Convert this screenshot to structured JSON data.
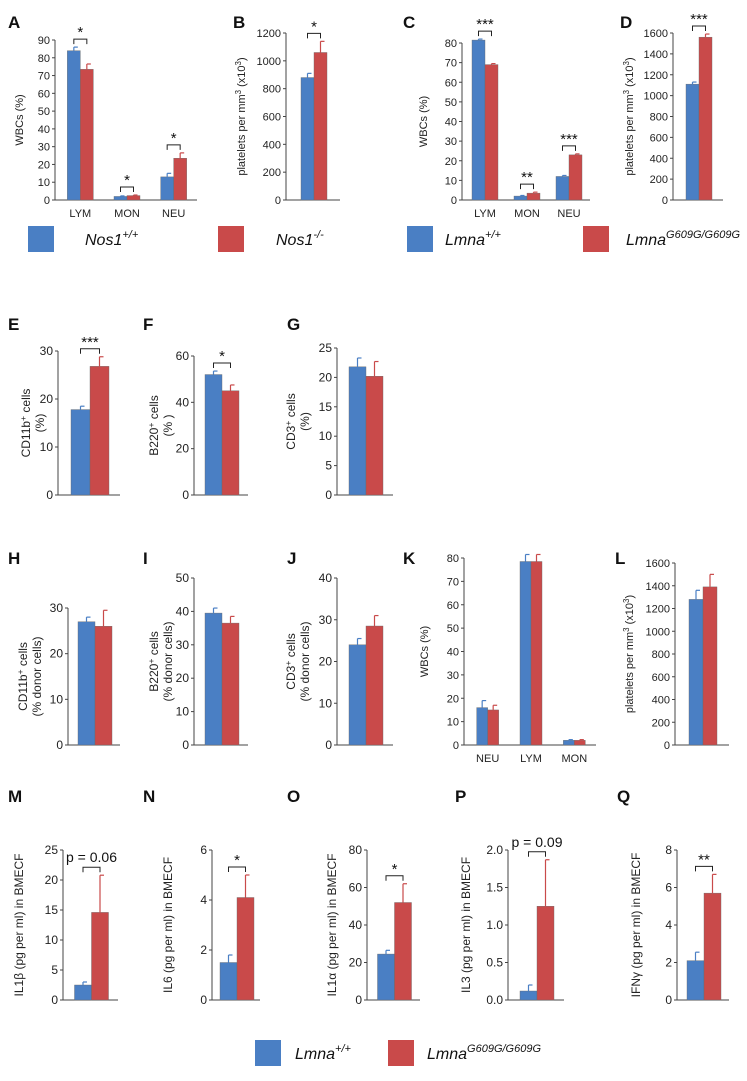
{
  "colors": {
    "wt": "#4a7fc4",
    "mut": "#c94a4a",
    "axis": "#444444"
  },
  "legends": [
    {
      "id": "nos1",
      "items": [
        {
          "color": "wt",
          "base": "Nos1",
          "sup": "+/+"
        },
        {
          "color": "mut",
          "base": "Nos1",
          "sup": "-/-"
        }
      ]
    },
    {
      "id": "lmna-top",
      "items": [
        {
          "color": "wt",
          "base": "Lmna",
          "sup": "+/+"
        },
        {
          "color": "mut",
          "base": "Lmna",
          "sup": "G609G/G609G"
        }
      ]
    },
    {
      "id": "lmna-bottom",
      "items": [
        {
          "color": "wt",
          "base": "Lmna",
          "sup": "+/+"
        },
        {
          "color": "mut",
          "base": "Lmna",
          "sup": "G609G/G609G"
        }
      ]
    }
  ],
  "chart_data": [
    {
      "panel": "A",
      "type": "bar",
      "ylabel": "WBCs (%)",
      "ylim": [
        0,
        90
      ],
      "yticks": [
        "0",
        "10",
        "20",
        "30",
        "40",
        "50",
        "60",
        "70",
        "80",
        "90"
      ],
      "categories": [
        "LYM",
        "MON",
        "NEU"
      ],
      "series": [
        {
          "name": "Nos1+/+",
          "values": [
            84,
            2,
            13
          ],
          "errors": [
            2,
            0.3,
            2
          ]
        },
        {
          "name": "Nos1-/-",
          "values": [
            73.5,
            2.5,
            23.5
          ],
          "errors": [
            3,
            0.3,
            3
          ]
        }
      ],
      "significance": [
        "*",
        "*",
        "*"
      ]
    },
    {
      "panel": "B",
      "type": "bar",
      "ylabel": "platelets per mm3 (x10^3)",
      "ylim": [
        0,
        1200
      ],
      "yticks": [
        "0",
        "200",
        "400",
        "600",
        "800",
        "1000",
        "1200"
      ],
      "categories": [
        ""
      ],
      "series": [
        {
          "name": "Nos1+/+",
          "values": [
            880
          ],
          "errors": [
            30
          ]
        },
        {
          "name": "Nos1-/-",
          "values": [
            1060
          ],
          "errors": [
            80
          ]
        }
      ],
      "significance": [
        "*"
      ]
    },
    {
      "panel": "C",
      "type": "bar",
      "ylabel": "WBCs (%)",
      "ylim": [
        0,
        80
      ],
      "yticks": [
        "0",
        "10",
        "20",
        "30",
        "40",
        "50",
        "60",
        "70",
        "80"
      ],
      "categories": [
        "LYM",
        "MON",
        "NEU"
      ],
      "series": [
        {
          "name": "Lmna+/+",
          "values": [
            81.5,
            2,
            12
          ],
          "errors": [
            0.5,
            0.3,
            0.5
          ]
        },
        {
          "name": "LmnaG609G/G609G",
          "values": [
            69,
            3.5,
            23
          ],
          "errors": [
            0.5,
            0.5,
            0.5
          ]
        }
      ],
      "significance": [
        "***",
        "**",
        "***"
      ]
    },
    {
      "panel": "D",
      "type": "bar",
      "ylabel": "platelets per mm3 (x10^3)",
      "ylim": [
        0,
        1600
      ],
      "yticks": [
        "0",
        "200",
        "400",
        "600",
        "800",
        "1000",
        "1200",
        "1400",
        "1600"
      ],
      "categories": [
        ""
      ],
      "series": [
        {
          "name": "Lmna+/+",
          "values": [
            1110
          ],
          "errors": [
            20
          ]
        },
        {
          "name": "LmnaG609G/G609G",
          "values": [
            1560
          ],
          "errors": [
            30
          ]
        }
      ],
      "significance": [
        "***"
      ]
    },
    {
      "panel": "E",
      "type": "bar",
      "ylabel": "CD11b+ cells (%)",
      "ylim": [
        0,
        30
      ],
      "yticks": [
        "0",
        "10",
        "20",
        "30"
      ],
      "categories": [
        ""
      ],
      "series": [
        {
          "name": "Lmna+/+",
          "values": [
            17.8
          ],
          "errors": [
            0.7
          ]
        },
        {
          "name": "LmnaG609G/G609G",
          "values": [
            26.8
          ],
          "errors": [
            2
          ]
        }
      ],
      "significance": [
        "***"
      ]
    },
    {
      "panel": "F",
      "type": "bar",
      "ylabel": "B220+ cells (%)",
      "ylim": [
        0,
        60
      ],
      "yticks": [
        "0",
        "20",
        "40",
        "60"
      ],
      "categories": [
        ""
      ],
      "series": [
        {
          "name": "Lmna+/+",
          "values": [
            52
          ],
          "errors": [
            1.5
          ]
        },
        {
          "name": "LmnaG609G/G609G",
          "values": [
            45
          ],
          "errors": [
            2.5
          ]
        }
      ],
      "significance": [
        "*"
      ]
    },
    {
      "panel": "G",
      "type": "bar",
      "ylabel": "CD3+ cells (%)",
      "ylim": [
        0,
        25
      ],
      "yticks": [
        "0",
        "5",
        "10",
        "15",
        "20",
        "25"
      ],
      "categories": [
        ""
      ],
      "series": [
        {
          "name": "Lmna+/+",
          "values": [
            21.8
          ],
          "errors": [
            1.5
          ]
        },
        {
          "name": "LmnaG609G/G609G",
          "values": [
            20.2
          ],
          "errors": [
            2.5
          ]
        }
      ],
      "significance": [
        ""
      ]
    },
    {
      "panel": "H",
      "type": "bar",
      "ylabel": "CD11b+ cells (% donor cells)",
      "ylim": [
        0,
        30
      ],
      "yticks": [
        "0",
        "10",
        "20",
        "30"
      ],
      "categories": [
        ""
      ],
      "series": [
        {
          "name": "Lmna+/+",
          "values": [
            27
          ],
          "errors": [
            1
          ]
        },
        {
          "name": "LmnaG609G/G609G",
          "values": [
            26
          ],
          "errors": [
            3.5
          ]
        }
      ],
      "significance": [
        ""
      ]
    },
    {
      "panel": "I",
      "type": "bar",
      "ylabel": "B220+ cells (% donor cells)",
      "ylim": [
        0,
        50
      ],
      "yticks": [
        "0",
        "10",
        "20",
        "30",
        "40",
        "50"
      ],
      "categories": [
        ""
      ],
      "series": [
        {
          "name": "Lmna+/+",
          "values": [
            39.5
          ],
          "errors": [
            1.5
          ]
        },
        {
          "name": "LmnaG609G/G609G",
          "values": [
            36.5
          ],
          "errors": [
            2
          ]
        }
      ],
      "significance": [
        ""
      ]
    },
    {
      "panel": "J",
      "type": "bar",
      "ylabel": "CD3+ cells (% donor cells)",
      "ylim": [
        0,
        40
      ],
      "yticks": [
        "0",
        "10",
        "20",
        "30",
        "40"
      ],
      "categories": [
        ""
      ],
      "series": [
        {
          "name": "Lmna+/+",
          "values": [
            24
          ],
          "errors": [
            1.5
          ]
        },
        {
          "name": "LmnaG609G/G609G",
          "values": [
            28.5
          ],
          "errors": [
            2.5
          ]
        }
      ],
      "significance": [
        ""
      ]
    },
    {
      "panel": "K",
      "type": "bar",
      "ylabel": "WBCs (%)",
      "ylim": [
        0,
        80
      ],
      "yticks": [
        "0",
        "10",
        "20",
        "30",
        "40",
        "50",
        "60",
        "70",
        "80"
      ],
      "categories": [
        "NEU",
        "LYM",
        "MON"
      ],
      "series": [
        {
          "name": "Lmna+/+",
          "values": [
            16,
            78.5,
            2
          ],
          "errors": [
            3,
            3,
            0.3
          ]
        },
        {
          "name": "LmnaG609G/G609G",
          "values": [
            15,
            78.5,
            2
          ],
          "errors": [
            2,
            3,
            0.3
          ]
        }
      ],
      "significance": [
        "",
        "",
        ""
      ]
    },
    {
      "panel": "L",
      "type": "bar",
      "ylabel": "platelets per mm3 (x10^3)",
      "ylim": [
        0,
        1600
      ],
      "yticks": [
        "0",
        "200",
        "400",
        "600",
        "800",
        "1000",
        "1200",
        "1400",
        "1600"
      ],
      "categories": [
        ""
      ],
      "series": [
        {
          "name": "Lmna+/+",
          "values": [
            1280
          ],
          "errors": [
            80
          ]
        },
        {
          "name": "LmnaG609G/G609G",
          "values": [
            1390
          ],
          "errors": [
            110
          ]
        }
      ],
      "significance": [
        ""
      ]
    },
    {
      "panel": "M",
      "type": "bar",
      "ylabel": "IL1β (pg per ml) in BMECF",
      "ylim": [
        0,
        25
      ],
      "yticks": [
        "0",
        "5",
        "10",
        "15",
        "20",
        "25"
      ],
      "categories": [
        ""
      ],
      "series": [
        {
          "name": "Lmna+/+",
          "values": [
            2.5
          ],
          "errors": [
            0.5
          ]
        },
        {
          "name": "LmnaG609G/G609G",
          "values": [
            14.6
          ],
          "errors": [
            6.2
          ]
        }
      ],
      "significance": [
        "p = 0.06"
      ]
    },
    {
      "panel": "N",
      "type": "bar",
      "ylabel": "IL6 (pg per ml) in BMECF",
      "ylim": [
        0,
        6
      ],
      "yticks": [
        "0",
        "2",
        "4",
        "6"
      ],
      "categories": [
        ""
      ],
      "series": [
        {
          "name": "Lmna+/+",
          "values": [
            1.5
          ],
          "errors": [
            0.3
          ]
        },
        {
          "name": "LmnaG609G/G609G",
          "values": [
            4.1
          ],
          "errors": [
            0.9
          ]
        }
      ],
      "significance": [
        "*"
      ]
    },
    {
      "panel": "O",
      "type": "bar",
      "ylabel": "IL1α (pg per ml) in BMECF",
      "ylim": [
        0,
        80
      ],
      "yticks": [
        "0",
        "20",
        "40",
        "60",
        "80"
      ],
      "categories": [
        ""
      ],
      "series": [
        {
          "name": "Lmna+/+",
          "values": [
            24.5
          ],
          "errors": [
            2
          ]
        },
        {
          "name": "LmnaG609G/G609G",
          "values": [
            52
          ],
          "errors": [
            10
          ]
        }
      ],
      "significance": [
        "*"
      ]
    },
    {
      "panel": "P",
      "type": "bar",
      "ylabel": "IL3 (pg per ml) in BMECF",
      "ylim": [
        0,
        2.0
      ],
      "yticks": [
        "0.0",
        "0.5",
        "1.0",
        "1.5",
        "2.0"
      ],
      "categories": [
        ""
      ],
      "series": [
        {
          "name": "Lmna+/+",
          "values": [
            0.12
          ],
          "errors": [
            0.08
          ]
        },
        {
          "name": "LmnaG609G/G609G",
          "values": [
            1.25
          ],
          "errors": [
            0.62
          ]
        }
      ],
      "significance": [
        "p = 0.09"
      ]
    },
    {
      "panel": "Q",
      "type": "bar",
      "ylabel": "IFNγ (pg per ml) in BMECF",
      "ylim": [
        0,
        8
      ],
      "yticks": [
        "0",
        "2",
        "4",
        "6",
        "8"
      ],
      "categories": [
        ""
      ],
      "series": [
        {
          "name": "Lmna+/+",
          "values": [
            2.1
          ],
          "errors": [
            0.45
          ]
        },
        {
          "name": "LmnaG609G/G609G",
          "values": [
            5.7
          ],
          "errors": [
            1
          ]
        }
      ],
      "significance": [
        "**"
      ]
    }
  ]
}
